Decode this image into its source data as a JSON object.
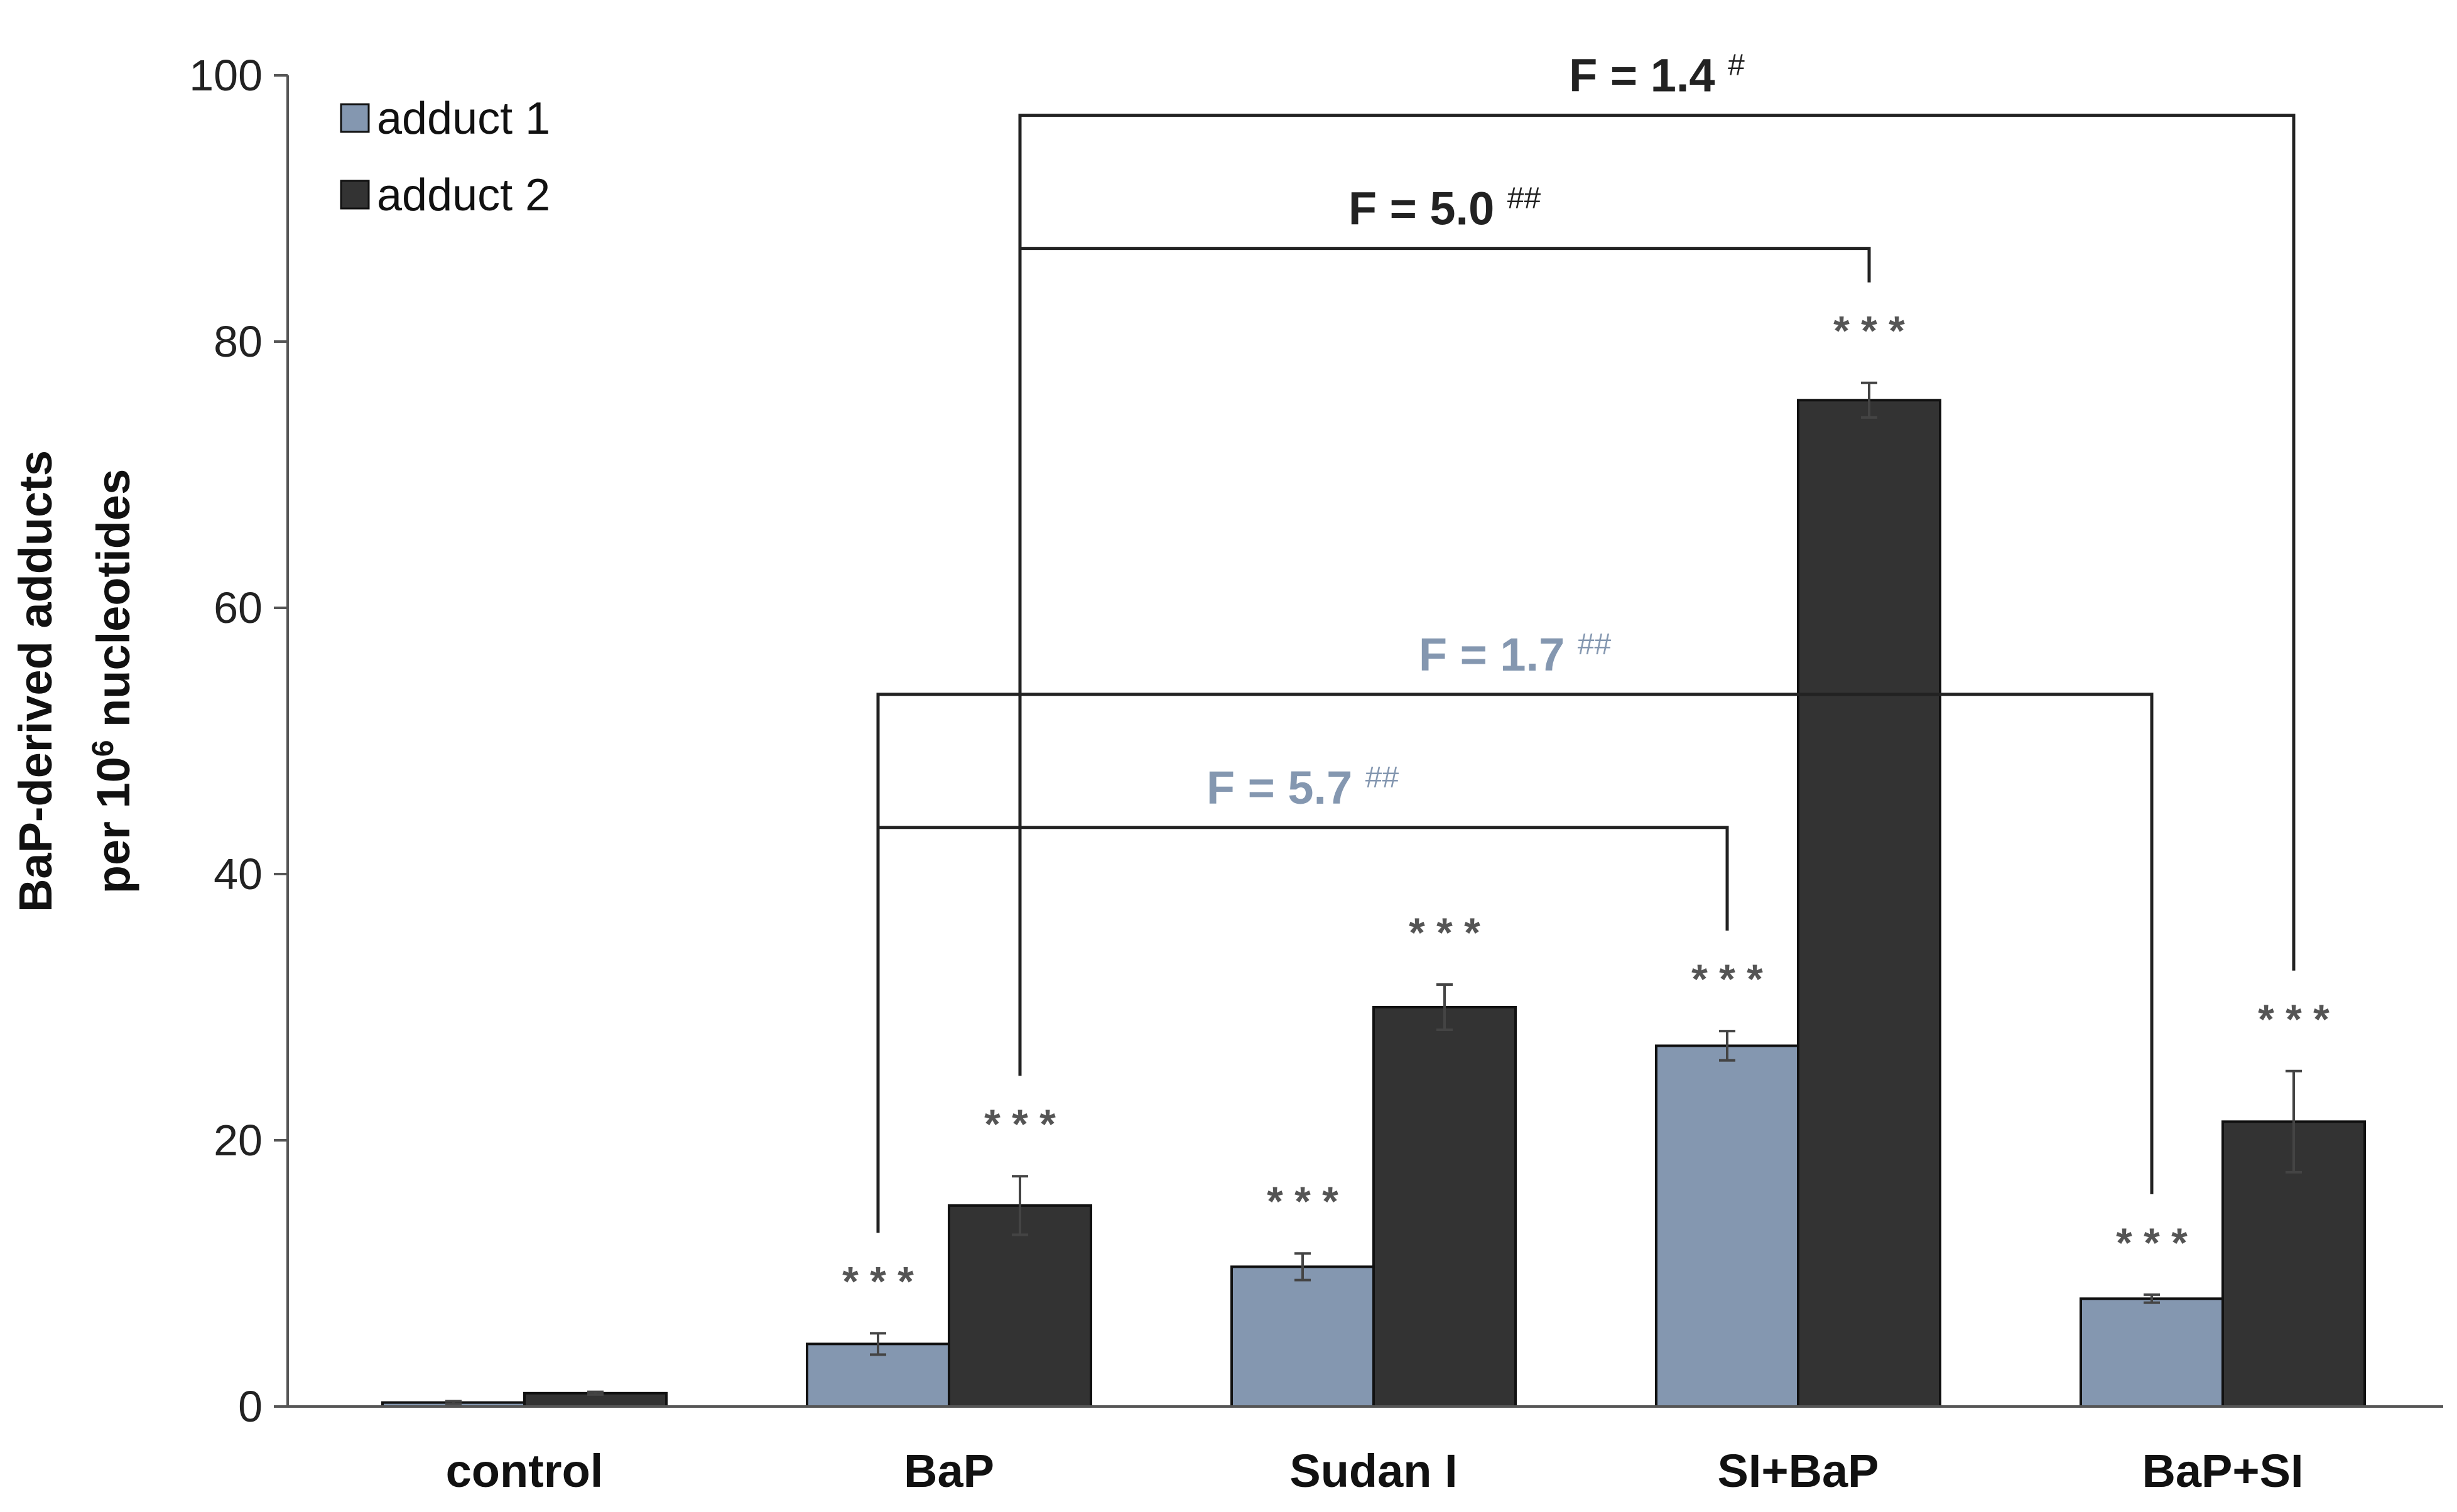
{
  "chart_data": {
    "type": "bar",
    "title": "",
    "xlabel": "",
    "ylabel_line1": "BaP-derived adducts",
    "ylabel_line2_prefix": "per 10",
    "ylabel_line2_sup": "6",
    "ylabel_line2_suffix": " nucleotides",
    "ylim": [
      0,
      100
    ],
    "yticks": [
      0,
      20,
      40,
      60,
      80,
      100
    ],
    "ytick_labels": [
      "0",
      "20",
      "40",
      "60",
      "80",
      "100"
    ],
    "categories": [
      "control",
      "BaP",
      "Sudan I",
      "SI+BaP",
      "BaP+SI"
    ],
    "series": [
      {
        "name": "adduct 1",
        "color": "#8497b0",
        "values": [
          0.3,
          4.7,
          10.5,
          27.1,
          8.1
        ],
        "errors": [
          0.1,
          0.8,
          1.0,
          1.1,
          0.3
        ],
        "significance": [
          "",
          "* * *",
          "* * *",
          "* * *",
          "* * *"
        ]
      },
      {
        "name": "adduct 2",
        "color": "#333333",
        "values": [
          1.0,
          15.1,
          30.0,
          75.6,
          21.4
        ],
        "errors": [
          0.1,
          2.2,
          1.7,
          1.3,
          3.8
        ],
        "significance": [
          "",
          "* * *",
          "* * *",
          "* * *",
          "* * *"
        ]
      }
    ],
    "legend": {
      "position": "top-left",
      "entries": [
        "adduct 1",
        "adduct 2"
      ]
    },
    "comparisons": [
      {
        "from_category": 1,
        "to_category": 4,
        "series": 1,
        "level": 97,
        "label": "F = 1.4",
        "sup": "#",
        "color": "#222222"
      },
      {
        "from_category": 1,
        "to_category": 3,
        "series": 1,
        "level": 87,
        "label": "F = 5.0",
        "sup": "##",
        "color": "#222222"
      },
      {
        "from_category": 1,
        "to_category": 4,
        "series": 0,
        "level": 53.5,
        "label": "F = 1.7",
        "sup": "##",
        "color": "#8497b0"
      },
      {
        "from_category": 1,
        "to_category": 3,
        "series": 0,
        "level": 43.5,
        "label": "F = 5.7",
        "sup": "##",
        "color": "#8497b0"
      }
    ]
  }
}
